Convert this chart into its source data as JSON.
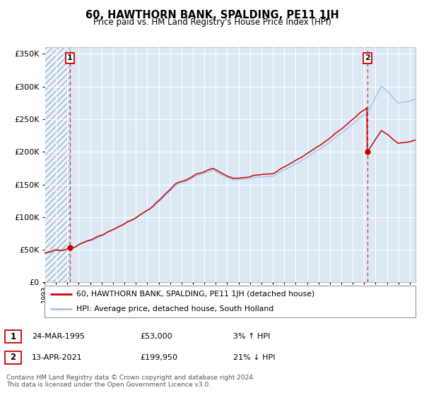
{
  "title": "60, HAWTHORN BANK, SPALDING, PE11 1JH",
  "subtitle": "Price paid vs. HM Land Registry's House Price Index (HPI)",
  "legend_line1": "60, HAWTHORN BANK, SPALDING, PE11 1JH (detached house)",
  "legend_line2": "HPI: Average price, detached house, South Holland",
  "sale1_date": "24-MAR-1995",
  "sale1_price": 53000,
  "sale1_pct": "3% ↑ HPI",
  "sale2_date": "13-APR-2021",
  "sale2_price": 199950,
  "sale2_pct": "21% ↓ HPI",
  "footer": "Contains HM Land Registry data © Crown copyright and database right 2024.\nThis data is licensed under the Open Government Licence v3.0.",
  "hpi_color": "#aac4e0",
  "price_color": "#cc0000",
  "plot_bg": "#dce9f5",
  "ylim": [
    0,
    360000
  ],
  "yticks": [
    0,
    50000,
    100000,
    150000,
    200000,
    250000,
    300000,
    350000
  ],
  "sale1_x": 1995.23,
  "sale2_x": 2021.28,
  "xmin": 1993.0,
  "xmax": 2025.5
}
